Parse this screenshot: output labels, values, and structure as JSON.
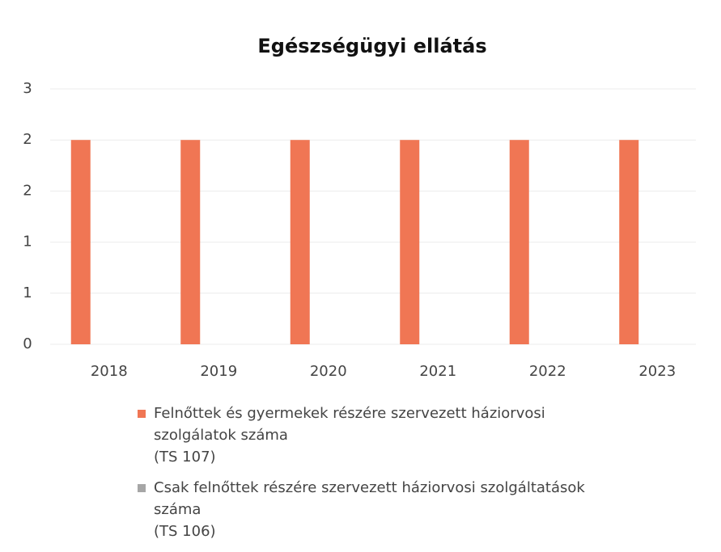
{
  "chart_data": {
    "type": "bar",
    "title": "Egészségügyi ellátás",
    "categories": [
      "2018",
      "2019",
      "2020",
      "2021",
      "2022",
      "2023"
    ],
    "series": [
      {
        "name": "Felnőttek és gyermekek részére szervezett háziorvosi szolgálatok száma\n(TS 107)",
        "color": "#f07654",
        "values": [
          2,
          2,
          2,
          2,
          2,
          2
        ]
      },
      {
        "name": "Csak felnőttek részére szervezett háziorvosi szolgáltatások száma\n(TS 106)",
        "color": "#a6a6a6",
        "values": [
          0,
          0,
          0,
          0,
          0,
          0
        ]
      }
    ],
    "ylim": [
      0,
      2.5
    ],
    "yticks": [
      0,
      {
        "value": 0.5,
        "label": "1"
      },
      1,
      {
        "value": 1.5,
        "label": "2"
      },
      2,
      {
        "value": 2.5,
        "label": "3"
      }
    ],
    "grid": true
  }
}
